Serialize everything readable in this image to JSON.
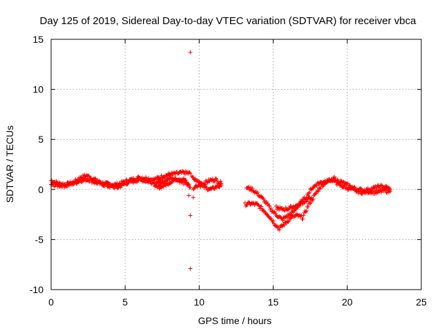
{
  "chart_data": {
    "type": "scatter",
    "title": "Day 125 of 2019, Sidereal Day-to-day VTEC variation (SDTVAR) for receiver vbca",
    "xlabel": "GPS time / hours",
    "ylabel": "SDTVAR / TECUs",
    "xlim": [
      0,
      25
    ],
    "ylim": [
      -10,
      15
    ],
    "xticks": [
      0,
      5,
      10,
      15,
      20,
      25
    ],
    "yticks": [
      -10,
      -5,
      0,
      5,
      10,
      15
    ],
    "grid": true,
    "marker": "+",
    "series": [
      {
        "name": "SDTVAR",
        "color": "#ff0000",
        "tracks": [
          {
            "x": [
              0,
              0.5,
              1.0,
              1.5,
              2.0,
              2.4,
              2.8,
              3.2,
              3.6,
              4.0,
              4.5,
              5.0,
              5.5,
              6.0,
              6.5,
              7.0,
              7.5,
              8.0,
              8.5,
              9.0,
              9.4
            ],
            "y": [
              0.9,
              0.6,
              0.5,
              0.7,
              1.2,
              1.4,
              1.1,
              0.8,
              0.6,
              0.5,
              0.5,
              0.8,
              1.0,
              1.2,
              1.1,
              1.0,
              1.3,
              1.5,
              1.6,
              1.7,
              1.6
            ]
          },
          {
            "x": [
              0,
              0.5,
              1.0,
              1.5,
              2.0,
              2.5,
              3.0,
              3.5,
              4.0,
              4.5,
              5.0,
              5.5,
              6.0,
              6.5,
              7.0,
              7.5
            ],
            "y": [
              0.5,
              0.4,
              0.4,
              0.6,
              0.9,
              1.0,
              0.7,
              0.5,
              0.3,
              0.2,
              0.6,
              0.8,
              1.0,
              0.8,
              0.7,
              0.9
            ]
          },
          {
            "x": [
              7.0,
              7.5,
              8.0,
              8.5,
              9.0,
              9.4
            ],
            "y": [
              0.2,
              0.3,
              0.7,
              1.1,
              1.0,
              0.2
            ]
          },
          {
            "x": [
              7.3,
              7.7,
              8.1,
              8.5,
              8.9,
              9.3
            ],
            "y": [
              0.5,
              0.9,
              1.2,
              1.0,
              0.7,
              0.5
            ]
          },
          {
            "x": [
              9.5,
              9.9,
              10.3,
              10.7,
              11.1,
              11.5
            ],
            "y": [
              1.2,
              0.8,
              0.6,
              0.9,
              1.0,
              0.6
            ]
          },
          {
            "x": [
              9.6,
              10.0,
              10.4,
              10.8,
              11.2,
              11.5
            ],
            "y": [
              0.2,
              0.5,
              0.2,
              0.0,
              0.3,
              0.4
            ]
          },
          {
            "x": [
              13.1,
              13.5,
              13.9,
              14.3,
              14.7,
              15.1,
              15.4,
              15.8,
              16.2,
              16.6,
              17.0,
              17.4,
              17.8,
              18.2,
              18.6,
              19.0,
              19.4
            ],
            "y": [
              -1.5,
              -1.4,
              -1.5,
              -2.0,
              -2.6,
              -3.4,
              -3.9,
              -3.4,
              -2.8,
              -2.6,
              -2.8,
              -1.5,
              -0.6,
              0.3,
              0.8,
              1.0,
              0.8
            ]
          },
          {
            "x": [
              13.2,
              13.6,
              14.0,
              14.4,
              14.8,
              15.2,
              15.6,
              16.0,
              16.4,
              16.8,
              17.2,
              17.6,
              18.0,
              18.4,
              18.8,
              19.2
            ],
            "y": [
              0.2,
              0.0,
              -0.5,
              -1.1,
              -1.9,
              -2.5,
              -3.0,
              -2.6,
              -2.2,
              -1.4,
              -0.8,
              0.1,
              0.6,
              0.8,
              0.9,
              1.1
            ]
          },
          {
            "x": [
              15.2,
              15.6,
              16.0,
              16.4,
              16.8,
              17.2,
              17.6
            ],
            "y": [
              -1.8,
              -2.0,
              -1.9,
              -1.7,
              -1.5,
              -1.1,
              -0.8
            ]
          },
          {
            "x": [
              19.3,
              19.7,
              20.1,
              20.5,
              21.0,
              21.5,
              22.0,
              22.5,
              22.9
            ],
            "y": [
              0.6,
              0.3,
              0.1,
              -0.1,
              -0.3,
              -0.2,
              -0.3,
              -0.1,
              -0.2
            ]
          },
          {
            "x": [
              19.4,
              19.8,
              20.2,
              20.7,
              21.2,
              21.7,
              22.2,
              22.7,
              22.9
            ],
            "y": [
              0.9,
              0.6,
              0.3,
              0.0,
              -0.1,
              0.1,
              0.3,
              0.2,
              0.0
            ]
          }
        ],
        "outliers": {
          "x": [
            9.4,
            9.4,
            9.4,
            9.6,
            9.3
          ],
          "y": [
            13.7,
            -2.6,
            -7.9,
            -0.8,
            -0.6
          ]
        }
      }
    ]
  }
}
